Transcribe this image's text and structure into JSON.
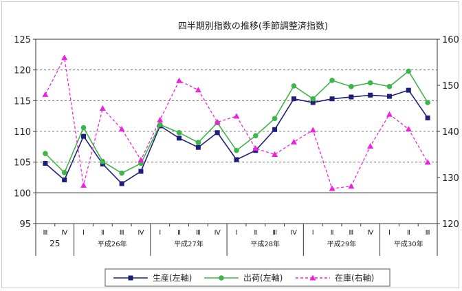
{
  "chart_data": {
    "type": "line",
    "title": "四半期別指数の推移(季節調整済指数)",
    "y_left": {
      "min": 95,
      "max": 125,
      "ticks": [
        95,
        100,
        105,
        110,
        115,
        120,
        125
      ]
    },
    "y_right": {
      "min": 120,
      "max": 160,
      "ticks": [
        120,
        130,
        140,
        150,
        160
      ]
    },
    "grid": "horizontal-dashed",
    "reference_line_left": 100,
    "x_quarters": [
      "Ⅲ",
      "Ⅳ",
      "Ⅰ",
      "Ⅱ",
      "Ⅲ",
      "Ⅳ",
      "Ⅰ",
      "Ⅱ",
      "Ⅲ",
      "Ⅳ",
      "Ⅰ",
      "Ⅱ",
      "Ⅲ",
      "Ⅳ",
      "Ⅰ",
      "Ⅱ",
      "Ⅲ",
      "Ⅳ",
      "Ⅰ",
      "Ⅱ",
      "Ⅲ"
    ],
    "x_years": [
      {
        "label": "25",
        "count": 2
      },
      {
        "label": "平成26年",
        "count": 4
      },
      {
        "label": "平成27年",
        "count": 4
      },
      {
        "label": "平成28年",
        "count": 4
      },
      {
        "label": "平成29年",
        "count": 4
      },
      {
        "label": "平成30年",
        "count": 3
      }
    ],
    "legend_position": "bottom",
    "series": [
      {
        "name": "生産(左軸)",
        "axis": "left",
        "color": "#1f1f7a",
        "marker": "square",
        "dash": "solid",
        "values": [
          104.8,
          102.1,
          109.2,
          104.7,
          101.5,
          103.5,
          110.9,
          108.9,
          107.4,
          109.8,
          105.4,
          106.9,
          110.3,
          115.3,
          114.7,
          115.3,
          115.6,
          115.9,
          115.7,
          116.7,
          112.2
        ]
      },
      {
        "name": "出荷(左軸)",
        "axis": "left",
        "color": "#3db54a",
        "marker": "circle",
        "dash": "solid",
        "values": [
          106.4,
          103.3,
          110.6,
          105.1,
          103.2,
          104.8,
          111.1,
          109.8,
          108.2,
          111.4,
          106.9,
          109.3,
          112.1,
          117.4,
          115.3,
          118.3,
          117.3,
          117.9,
          117.3,
          119.8,
          114.7
        ]
      },
      {
        "name": "在庫(右軸)",
        "axis": "right",
        "color": "#ee22dd",
        "marker": "triangle",
        "dash": "dashed",
        "values": [
          148.0,
          156.0,
          128.3,
          145.0,
          140.5,
          133.8,
          142.5,
          151.0,
          149.0,
          142.0,
          143.3,
          136.3,
          135.0,
          137.7,
          140.3,
          127.6,
          128.1,
          136.8,
          143.7,
          140.5,
          133.3
        ]
      }
    ]
  }
}
